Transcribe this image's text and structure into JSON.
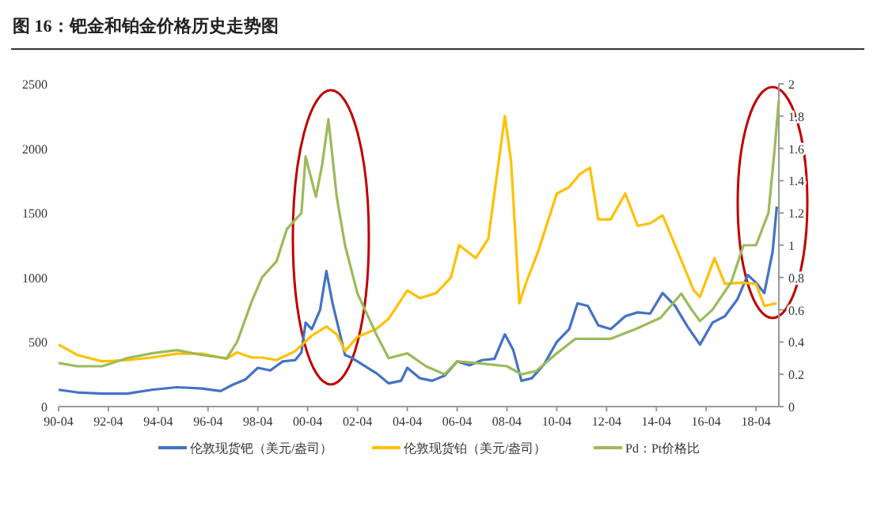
{
  "chart_data": {
    "type": "line",
    "title": "图 16：钯金和铂金价格历史走势图",
    "legend": "bottom",
    "grid": false,
    "xlim": [
      "1990-04",
      "2019-03"
    ],
    "xticks": [
      {
        "value": "1990-04",
        "label": "90-04"
      },
      {
        "value": "1992-04",
        "label": "92-04"
      },
      {
        "value": "1994-04",
        "label": "94-04"
      },
      {
        "value": "1996-04",
        "label": "96-04"
      },
      {
        "value": "1998-04",
        "label": "98-04"
      },
      {
        "value": "2000-04",
        "label": "00-04"
      },
      {
        "value": "2002-04",
        "label": "02-04"
      },
      {
        "value": "2004-04",
        "label": "04-04"
      },
      {
        "value": "2006-04",
        "label": "06-04"
      },
      {
        "value": "2008-04",
        "label": "08-04"
      },
      {
        "value": "2010-04",
        "label": "10-04"
      },
      {
        "value": "2012-04",
        "label": "12-04"
      },
      {
        "value": "2014-04",
        "label": "14-04"
      },
      {
        "value": "2016-04",
        "label": "16-04"
      },
      {
        "value": "2018-04",
        "label": "18-04"
      }
    ],
    "ylim": [
      0,
      2500
    ],
    "yticks": [
      0,
      500,
      1000,
      1500,
      2000,
      2500
    ],
    "y2lim": [
      0,
      2
    ],
    "y2ticks": [
      0,
      0.2,
      0.4,
      0.6,
      0.8,
      1,
      1.2,
      1.4,
      1.6,
      1.8,
      2
    ],
    "series": [
      {
        "name": "伦敦现货钯（美元/盎司）",
        "color": "#4472c4",
        "x": [
          "1990-04",
          "1991-01",
          "1992-01",
          "1993-01",
          "1994-01",
          "1995-01",
          "1996-01",
          "1996-10",
          "1997-04",
          "1997-10",
          "1998-04",
          "1998-10",
          "1999-04",
          "1999-10",
          "2000-01",
          "2000-03",
          "2000-06",
          "2000-10",
          "2001-01",
          "2001-04",
          "2001-07",
          "2001-10",
          "2002-01",
          "2002-07",
          "2003-01",
          "2003-07",
          "2004-01",
          "2004-04",
          "2004-10",
          "2005-04",
          "2005-10",
          "2006-04",
          "2006-10",
          "2007-04",
          "2007-10",
          "2008-03",
          "2008-07",
          "2008-11",
          "2009-04",
          "2009-10",
          "2010-04",
          "2010-10",
          "2011-02",
          "2011-07",
          "2011-12",
          "2012-06",
          "2013-01",
          "2013-07",
          "2014-01",
          "2014-07",
          "2015-01",
          "2015-07",
          "2016-01",
          "2016-07",
          "2017-01",
          "2017-07",
          "2017-12",
          "2018-04",
          "2018-08",
          "2018-12",
          "2019-02"
        ],
        "values": [
          130,
          110,
          100,
          100,
          130,
          150,
          140,
          120,
          170,
          210,
          300,
          280,
          350,
          360,
          420,
          650,
          600,
          750,
          1050,
          800,
          600,
          400,
          380,
          320,
          260,
          180,
          200,
          300,
          220,
          200,
          240,
          350,
          320,
          360,
          370,
          560,
          440,
          200,
          220,
          330,
          500,
          600,
          800,
          780,
          630,
          600,
          700,
          730,
          720,
          880,
          780,
          620,
          480,
          650,
          700,
          830,
          1020,
          960,
          880,
          1200,
          1550
        ]
      },
      {
        "name": "伦敦现货铂（美元/盎司）",
        "color": "#ffc000",
        "x": [
          "1990-04",
          "1991-01",
          "1992-01",
          "1993-01",
          "1994-01",
          "1995-01",
          "1996-01",
          "1997-01",
          "1997-06",
          "1998-01",
          "1998-06",
          "1999-01",
          "1999-10",
          "2000-06",
          "2001-01",
          "2001-06",
          "2001-10",
          "2002-04",
          "2003-01",
          "2003-07",
          "2004-04",
          "2004-10",
          "2005-06",
          "2006-01",
          "2006-05",
          "2007-01",
          "2007-07",
          "2008-03",
          "2008-06",
          "2008-10",
          "2009-01",
          "2009-07",
          "2010-04",
          "2010-10",
          "2011-03",
          "2011-08",
          "2011-12",
          "2012-06",
          "2013-01",
          "2013-07",
          "2014-01",
          "2014-07",
          "2015-01",
          "2015-10",
          "2016-01",
          "2016-08",
          "2017-01",
          "2017-09",
          "2018-04",
          "2018-08",
          "2019-02"
        ],
        "values": [
          480,
          400,
          350,
          360,
          380,
          410,
          410,
          370,
          420,
          380,
          380,
          360,
          430,
          550,
          620,
          560,
          430,
          540,
          600,
          680,
          900,
          840,
          880,
          1000,
          1250,
          1150,
          1300,
          2250,
          1900,
          800,
          950,
          1200,
          1650,
          1700,
          1800,
          1850,
          1450,
          1450,
          1650,
          1400,
          1420,
          1480,
          1250,
          900,
          850,
          1150,
          950,
          960,
          950,
          780,
          800
        ]
      },
      {
        "name": "Pd：Pt价格比",
        "color": "#9bbb59",
        "axis": "y2",
        "x": [
          "1990-04",
          "1991-01",
          "1992-01",
          "1993-01",
          "1994-01",
          "1995-01",
          "1996-01",
          "1997-01",
          "1997-06",
          "1998-01",
          "1998-06",
          "1999-01",
          "1999-06",
          "2000-01",
          "2000-03",
          "2000-08",
          "2000-11",
          "2001-02",
          "2001-06",
          "2001-10",
          "2002-04",
          "2003-01",
          "2003-07",
          "2004-04",
          "2005-01",
          "2005-10",
          "2006-04",
          "2007-01",
          "2008-04",
          "2008-11",
          "2009-06",
          "2010-04",
          "2011-01",
          "2011-10",
          "2012-06",
          "2013-06",
          "2014-06",
          "2015-04",
          "2015-09",
          "2016-01",
          "2016-07",
          "2017-04",
          "2017-10",
          "2018-04",
          "2018-10",
          "2019-01",
          "2019-03"
        ],
        "values": [
          0.27,
          0.25,
          0.25,
          0.3,
          0.33,
          0.35,
          0.32,
          0.3,
          0.4,
          0.65,
          0.8,
          0.9,
          1.1,
          1.2,
          1.55,
          1.3,
          1.5,
          1.78,
          1.3,
          1,
          0.7,
          0.45,
          0.3,
          0.33,
          0.25,
          0.2,
          0.28,
          0.27,
          0.25,
          0.2,
          0.22,
          0.33,
          0.42,
          0.42,
          0.42,
          0.48,
          0.55,
          0.7,
          0.6,
          0.53,
          0.6,
          0.77,
          1,
          1,
          1.2,
          1.6,
          1.9
        ]
      }
    ]
  }
}
